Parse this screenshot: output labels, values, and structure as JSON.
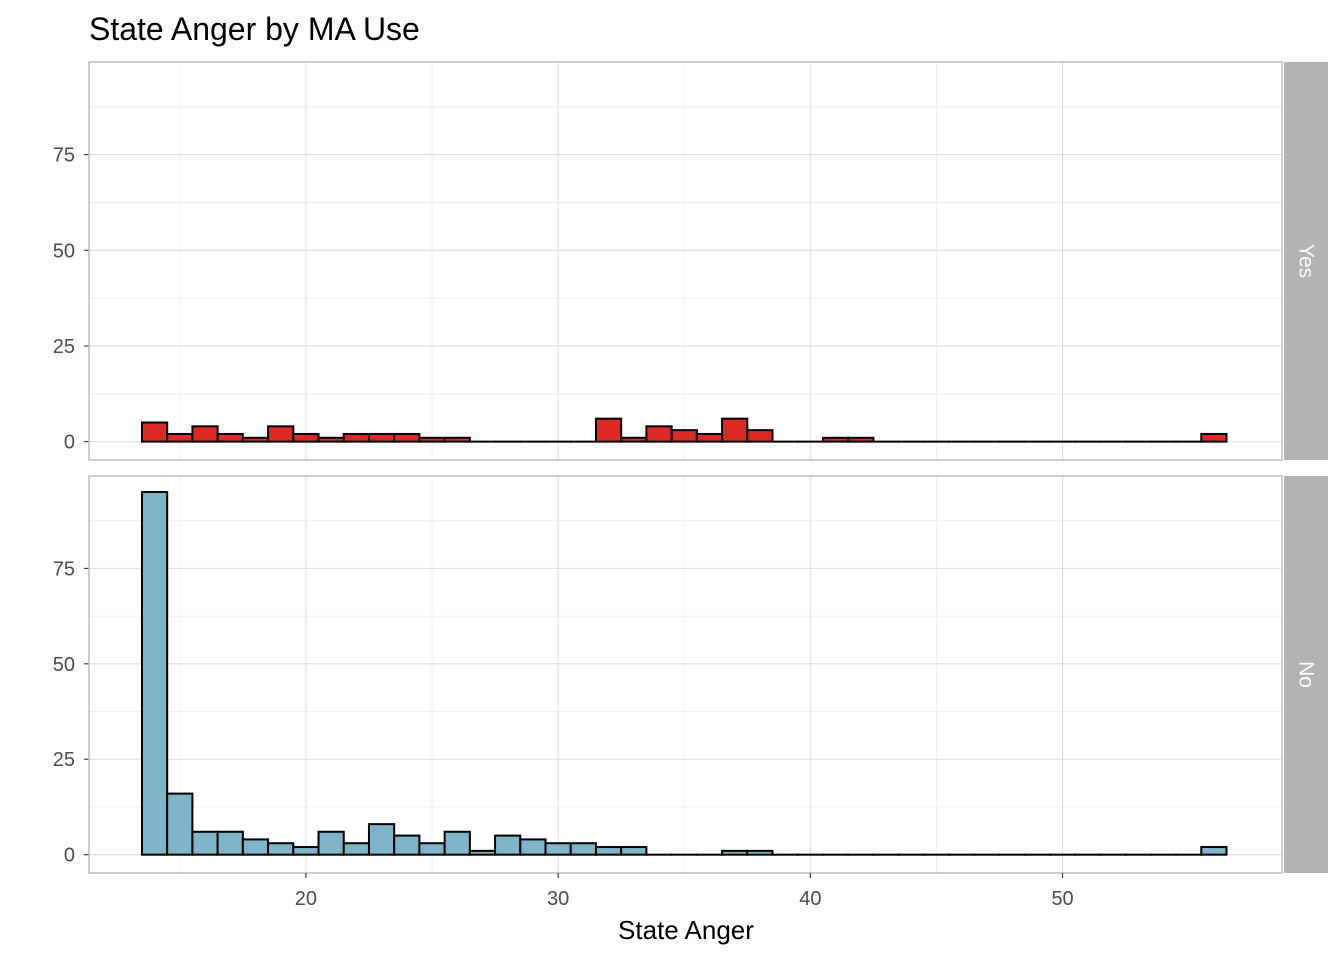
{
  "chart_data": {
    "type": "bar",
    "title": "State Anger by MA Use",
    "xlabel": "State Anger",
    "ylabel": "",
    "xlim": [
      11.4,
      58.7
    ],
    "ylim": [
      -4.8,
      99.2
    ],
    "x_ticks": [
      20,
      30,
      40,
      50
    ],
    "y_ticks": [
      0,
      25,
      50,
      75
    ],
    "grid": true,
    "bin_width": 1,
    "bins_start": 13.5,
    "colors": {
      "Yes": "#dd2a24",
      "No": "#7fb5c9",
      "outline": "#000000",
      "strip": "#b3b3b3"
    },
    "panels": [
      {
        "strip": "Yes",
        "values": [
          5,
          2,
          4,
          2,
          1,
          4,
          2,
          1,
          2,
          2,
          2,
          1,
          1,
          0,
          0,
          0,
          0,
          0,
          6,
          1,
          4,
          3,
          2,
          6,
          3,
          0,
          0,
          1,
          1,
          0,
          0,
          0,
          0,
          0,
          0,
          0,
          0,
          0,
          0,
          0,
          0,
          0,
          2
        ]
      },
      {
        "strip": "No",
        "values": [
          95,
          16,
          6,
          6,
          4,
          3,
          2,
          6,
          3,
          8,
          5,
          3,
          6,
          1,
          5,
          4,
          3,
          3,
          2,
          2,
          0,
          0,
          0,
          1,
          1,
          0,
          0,
          0,
          0,
          0,
          0,
          0,
          0,
          0,
          0,
          0,
          0,
          0,
          0,
          0,
          0,
          0,
          2
        ]
      }
    ]
  }
}
